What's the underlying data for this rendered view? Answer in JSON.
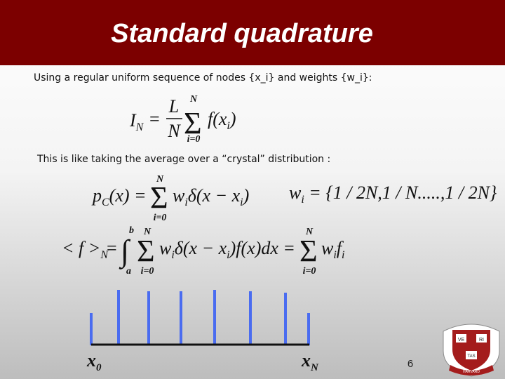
{
  "header": {
    "title": "Standard quadrature"
  },
  "body": {
    "intro": "Using a regular uniform sequence of nodes {x_i} and weights {w_i}:",
    "crystal_text": "This is like taking the average over a “crystal” distribution :",
    "eq_1": {
      "lhs": "I",
      "lhs_sub": "N",
      "equals": "=",
      "numerator": "L",
      "denominator": "N",
      "sigma": "Σ",
      "upper": "N",
      "lower": "i=0",
      "body": "f(x",
      "body_sub": "i",
      "body_end": ")"
    },
    "eq_2": {
      "lhs": "p",
      "lhs_sub": "C",
      "lhs_end": "(x) =",
      "sigma": "Σ",
      "upper": "N",
      "lower": "i=0",
      "w": "w",
      "w_sub": "i",
      "delta": "δ(x − x",
      "delta_sub": "i",
      "delta_end": ")"
    },
    "eq_3": {
      "w": "w",
      "w_sub": "i",
      "rhs": " = {1 / 2N,1 / N.....,1 / 2N}"
    },
    "eq_4": {
      "lhs": "< f >",
      "lhs_sub": "N",
      "equals": "=",
      "integral": "∫",
      "upper_limit": "b",
      "lower_limit": "a",
      "sigma": "Σ",
      "upper": "N",
      "lower": "i=0",
      "w": "w",
      "w_sub": "i",
      "delta": "δ(x − x",
      "delta_sub": "i",
      "delta_end": ")f(x)dx =",
      "sigma_2": "Σ",
      "upper_2": "N",
      "lower_2": "i=0",
      "w_2": "w",
      "w_2_sub": "i",
      "f": "f",
      "f_sub": "i"
    },
    "x_start": "x",
    "x_start_sub": "0",
    "x_end": "x",
    "x_end_sub": "N"
  },
  "footer": {
    "page_number": "6",
    "logo": {
      "ve": "VE",
      "ri": "RI",
      "tas": "TAS",
      "ribbon": "HARVARD"
    }
  }
}
